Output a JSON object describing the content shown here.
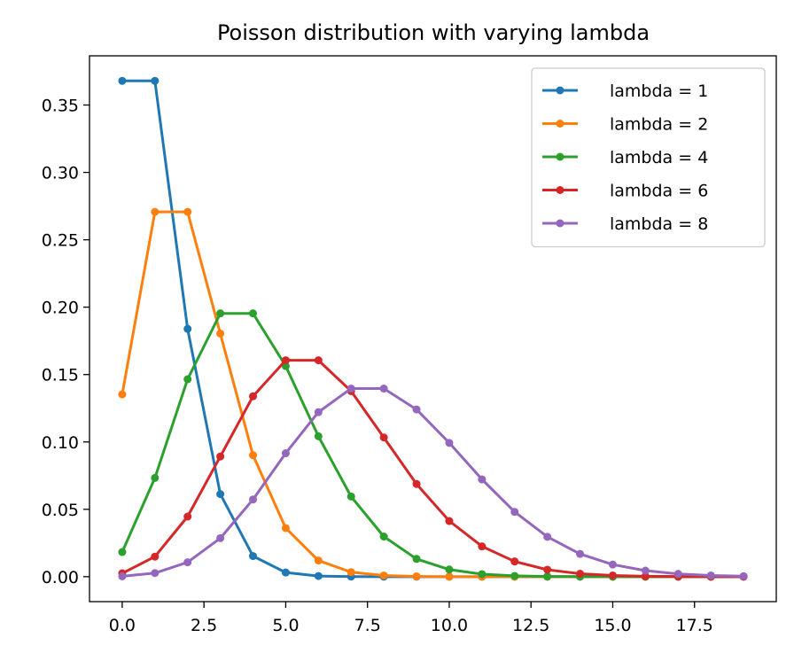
{
  "chart_data": {
    "type": "line",
    "title": "Poisson distribution with varying lambda",
    "xlabel": "",
    "ylabel": "",
    "xlim": [
      -1.0,
      20.0
    ],
    "ylim": [
      -0.0185,
      0.3865
    ],
    "x_ticks": [
      0.0,
      2.5,
      5.0,
      7.5,
      10.0,
      12.5,
      15.0,
      17.5
    ],
    "x_tick_labels": [
      "0.0",
      "2.5",
      "5.0",
      "7.5",
      "10.0",
      "12.5",
      "15.0",
      "17.5"
    ],
    "y_ticks": [
      0.0,
      0.05,
      0.1,
      0.15,
      0.2,
      0.25,
      0.3,
      0.35
    ],
    "y_tick_labels": [
      "0.00",
      "0.05",
      "0.10",
      "0.15",
      "0.20",
      "0.25",
      "0.30",
      "0.35"
    ],
    "grid": false,
    "legend_position": "top-right",
    "x": [
      0,
      1,
      2,
      3,
      4,
      5,
      6,
      7,
      8,
      9,
      10,
      11,
      12,
      13,
      14,
      15,
      16,
      17,
      18,
      19
    ],
    "series": [
      {
        "name": "lambda = 1",
        "color": "#1f77b4",
        "values": [
          0.3679,
          0.3679,
          0.1839,
          0.0613,
          0.0153,
          0.0031,
          0.0005,
          0.0001,
          0.0,
          0.0,
          0.0,
          0.0,
          0.0,
          0.0,
          0.0,
          0.0,
          0.0,
          0.0,
          0.0,
          0.0
        ]
      },
      {
        "name": "lambda = 2",
        "color": "#ff7f0e",
        "values": [
          0.1353,
          0.2707,
          0.2707,
          0.1804,
          0.0902,
          0.0361,
          0.012,
          0.0034,
          0.0009,
          0.0002,
          0.0,
          0.0,
          0.0,
          0.0,
          0.0,
          0.0,
          0.0,
          0.0,
          0.0,
          0.0
        ]
      },
      {
        "name": "lambda = 4",
        "color": "#2ca02c",
        "values": [
          0.0183,
          0.0733,
          0.1465,
          0.1954,
          0.1954,
          0.1563,
          0.1042,
          0.0595,
          0.0298,
          0.0132,
          0.0053,
          0.0019,
          0.0006,
          0.0002,
          0.0001,
          0.0,
          0.0,
          0.0,
          0.0,
          0.0
        ]
      },
      {
        "name": "lambda = 6",
        "color": "#d62728",
        "values": [
          0.0025,
          0.0149,
          0.0446,
          0.0892,
          0.1339,
          0.1606,
          0.1606,
          0.1377,
          0.1033,
          0.0688,
          0.0413,
          0.0225,
          0.0113,
          0.0052,
          0.0022,
          0.0009,
          0.0003,
          0.0001,
          0.0,
          0.0
        ]
      },
      {
        "name": "lambda = 8",
        "color": "#9467bd",
        "values": [
          0.0003,
          0.0027,
          0.0107,
          0.0286,
          0.0573,
          0.0916,
          0.1221,
          0.1396,
          0.1396,
          0.1241,
          0.0993,
          0.0722,
          0.0481,
          0.0296,
          0.0169,
          0.009,
          0.0045,
          0.0021,
          0.0009,
          0.0004
        ]
      }
    ]
  }
}
